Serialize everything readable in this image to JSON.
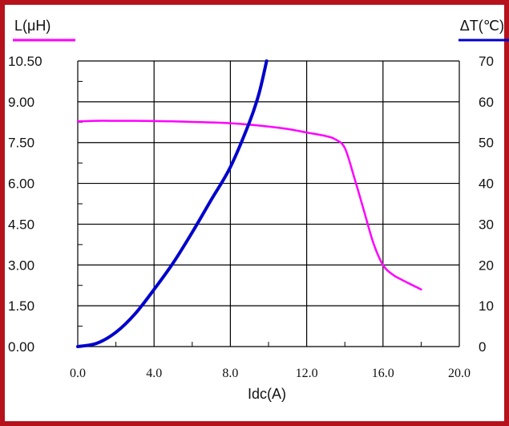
{
  "colors": {
    "frame": "#b5121b",
    "inductance": "#ff00ff",
    "temperature": "#0000cc",
    "grid": "#000000"
  },
  "chart_data": {
    "type": "line",
    "grid": true,
    "xlabel": "Idc(A)",
    "x_ticks": [
      "0.0",
      "4.0",
      "8.0",
      "12.0",
      "16.0",
      "20.0"
    ],
    "xlim": [
      0,
      20
    ],
    "y_left": {
      "label": "L(μH)",
      "ticks": [
        "0.00",
        "1.50",
        "3.00",
        "4.50",
        "6.00",
        "7.50",
        "9.00",
        "10.50"
      ],
      "ylim": [
        0,
        10.5
      ]
    },
    "y_right": {
      "label": "ΔT(℃)",
      "ticks": [
        "0",
        "10",
        "20",
        "30",
        "40",
        "50",
        "60",
        "70"
      ],
      "ylim": [
        0,
        70
      ]
    },
    "series": [
      {
        "axis": "left",
        "x": [
          0,
          1,
          2,
          3,
          4,
          5,
          6,
          7,
          8,
          9,
          10,
          11,
          12,
          13,
          13.5,
          14,
          14.5,
          15,
          15.5,
          16,
          16.5,
          17,
          18
        ],
        "y": [
          8.28,
          8.3,
          8.3,
          8.3,
          8.29,
          8.28,
          8.26,
          8.24,
          8.21,
          8.16,
          8.09,
          8.0,
          7.87,
          7.74,
          7.62,
          7.3,
          6.2,
          5.0,
          3.8,
          3.0,
          2.65,
          2.45,
          2.1
        ]
      },
      {
        "axis": "right",
        "x": [
          0,
          1,
          2,
          3,
          4,
          5,
          6,
          7,
          8,
          9,
          9.5,
          9.9
        ],
        "y": [
          0,
          0.8,
          3.5,
          8.0,
          14.0,
          20.5,
          28.0,
          36.0,
          44.0,
          55.0,
          62.0,
          70.0
        ]
      }
    ]
  }
}
